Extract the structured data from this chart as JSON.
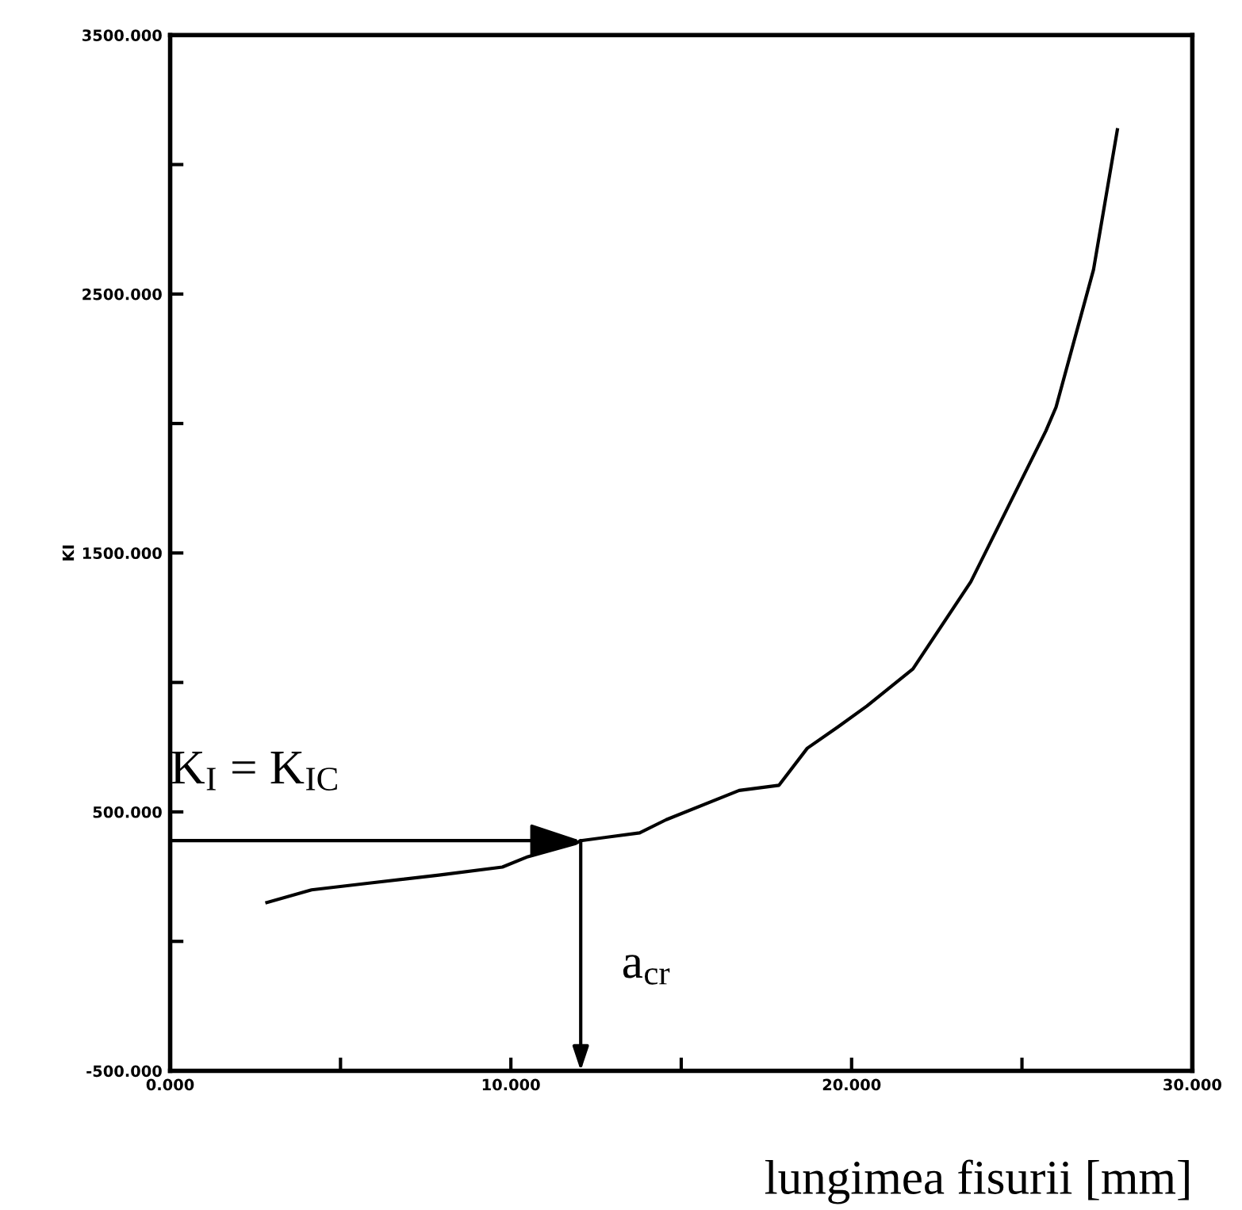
{
  "chart_data": {
    "type": "line",
    "xlabel": "lungimea fisurii [mm]",
    "ylabel": "KI",
    "x": [
      2.84,
      4.15,
      5.84,
      7.89,
      9.75,
      10.5,
      11.9,
      12.05,
      13.78,
      14.56,
      16.7,
      17.87,
      18.7,
      19.6,
      20.45,
      21.8,
      23.5,
      25.7,
      26.0,
      27.1,
      27.8
    ],
    "series": [
      {
        "color": "#000000",
        "values": [
          150,
          199,
          225,
          256,
          287,
          327,
          378,
          389,
          419,
          470,
          583,
          603,
          746,
          828,
          909,
          1052,
          1389,
          1971,
          2063,
          2594,
          3134
        ]
      }
    ],
    "xlim": [
      0,
      30
    ],
    "ylim": [
      -500,
      3500
    ],
    "xticks": [
      {
        "value": 0,
        "label": "0.000"
      },
      {
        "value": 5,
        "label": null
      },
      {
        "value": 10,
        "label": "10.000"
      },
      {
        "value": 15,
        "label": null
      },
      {
        "value": 20,
        "label": "20.000"
      },
      {
        "value": 25,
        "label": null
      },
      {
        "value": 30,
        "label": "30.000"
      }
    ],
    "yticks": [
      {
        "value": -500,
        "label": "-500.000"
      },
      {
        "value": 0,
        "label": null
      },
      {
        "value": 500,
        "label": "500.000"
      },
      {
        "value": 1000,
        "label": null
      },
      {
        "value": 1500,
        "label": "1500.000"
      },
      {
        "value": 2000,
        "label": null
      },
      {
        "value": 2500,
        "label": "2500.000"
      },
      {
        "value": 3000,
        "label": null
      },
      {
        "value": 3500,
        "label": "3500.000"
      }
    ],
    "annotations": [
      {
        "text": "K$_{I}$ = K$_{IC}$",
        "x": 12.05,
        "y": 389
      },
      "a$_{cr}$"
    ],
    "grid": false,
    "marker": "none",
    "line_style": "solid"
  }
}
